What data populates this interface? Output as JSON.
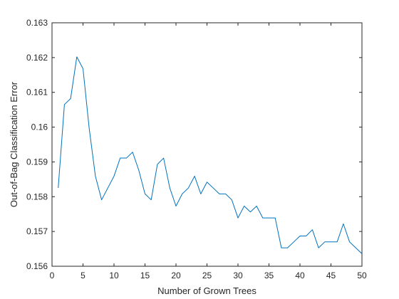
{
  "chart_data": {
    "type": "line",
    "title": "",
    "xlabel": "Number of Grown Trees",
    "ylabel": "Out-of-Bag Classification Error",
    "xlim": [
      0,
      50
    ],
    "ylim": [
      0.156,
      0.163
    ],
    "xticks": [
      0,
      5,
      10,
      15,
      20,
      25,
      30,
      35,
      40,
      45,
      50
    ],
    "yticks": [
      0.156,
      0.157,
      0.158,
      0.159,
      0.16,
      0.161,
      0.162,
      0.163
    ],
    "xtick_labels": [
      "0",
      "5",
      "10",
      "15",
      "20",
      "25",
      "30",
      "35",
      "40",
      "45",
      "50"
    ],
    "ytick_labels": [
      "0.156",
      "0.157",
      "0.158",
      "0.159",
      "0.16",
      "0.161",
      "0.162",
      "0.163"
    ],
    "grid": false,
    "line_color": "#0072BD",
    "series": [
      {
        "x": [
          1,
          2,
          3,
          4,
          5,
          6,
          7,
          8,
          9,
          10,
          11,
          12,
          13,
          14,
          15,
          16,
          17,
          18,
          19,
          20,
          21,
          22,
          23,
          24,
          25,
          26,
          27,
          28,
          29,
          30,
          31,
          32,
          33,
          34,
          35,
          36,
          37,
          38,
          39,
          40,
          41,
          42,
          43,
          44,
          45,
          46,
          47,
          48,
          49,
          50
        ],
        "values": [
          0.15825,
          0.16065,
          0.16082,
          0.16202,
          0.16168,
          0.15996,
          0.15859,
          0.15791,
          0.15825,
          0.15859,
          0.15911,
          0.15911,
          0.15928,
          0.15876,
          0.15808,
          0.15791,
          0.15893,
          0.15911,
          0.15825,
          0.15773,
          0.15808,
          0.15825,
          0.15859,
          0.15808,
          0.15842,
          0.15825,
          0.15808,
          0.15808,
          0.15791,
          0.15739,
          0.15773,
          0.15756,
          0.15773,
          0.15739,
          0.15739,
          0.15739,
          0.15653,
          0.15653,
          0.1567,
          0.15687,
          0.15687,
          0.15705,
          0.15653,
          0.1567,
          0.1567,
          0.1567,
          0.15722,
          0.1567,
          0.15653,
          0.15636
        ]
      }
    ]
  }
}
